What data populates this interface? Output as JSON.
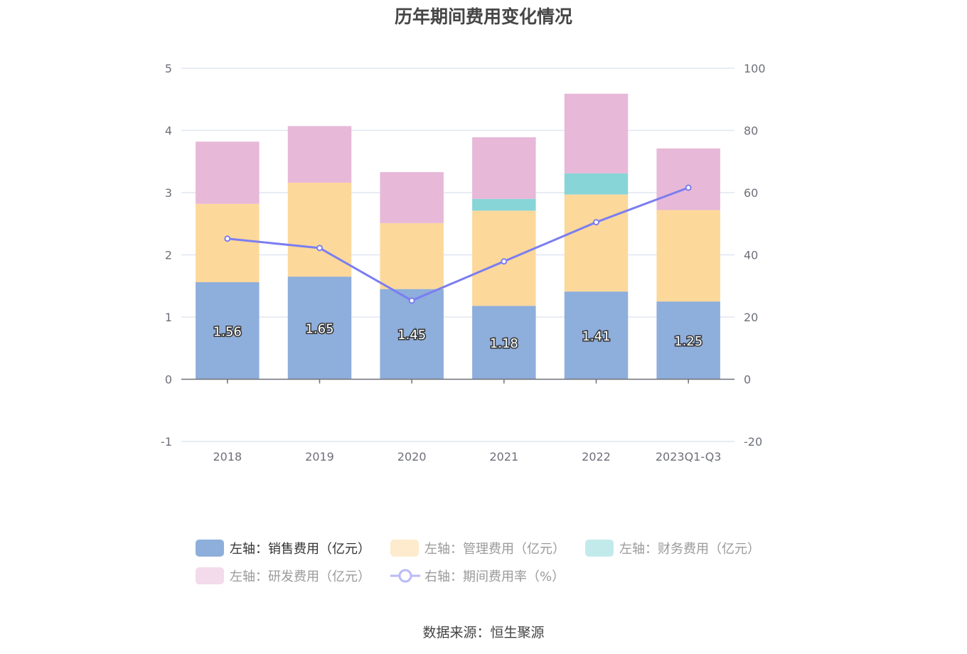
{
  "title": "历年期间费用变化情况",
  "source": "数据来源：恒生聚源",
  "chart_data": {
    "type": "bar",
    "stacked": true,
    "title": "历年期间费用变化情况",
    "categories": [
      "2018",
      "2019",
      "2020",
      "2021",
      "2022",
      "2023Q1-Q3"
    ],
    "y_left": {
      "ylim": [
        -1,
        5
      ],
      "ticks": [
        "-1",
        "0",
        "1",
        "2",
        "3",
        "4",
        "5"
      ],
      "tick_values": [
        -1,
        0,
        1,
        2,
        3,
        4,
        5
      ]
    },
    "y_right": {
      "ylim": [
        -20,
        100
      ],
      "ticks": [
        "-20",
        "0",
        "20",
        "40",
        "60",
        "80",
        "100"
      ],
      "tick_values": [
        -20,
        0,
        20,
        40,
        60,
        80,
        100
      ]
    },
    "grid": true,
    "legend_position": "bottom",
    "series": [
      {
        "name": "左轴：销售费用（亿元）",
        "type": "bar",
        "axis": "left",
        "color": "#8eaedb",
        "values": [
          1.56,
          1.65,
          1.45,
          1.18,
          1.41,
          1.25
        ],
        "labels": [
          "1.56",
          "1.65",
          "1.45",
          "1.18",
          "1.41",
          "1.25"
        ],
        "active": true
      },
      {
        "name": "左轴：管理费用（亿元）",
        "type": "bar",
        "axis": "left",
        "color": "#fdd89b",
        "values": [
          1.26,
          1.51,
          1.06,
          1.53,
          1.56,
          1.47
        ],
        "active": false
      },
      {
        "name": "左轴：财务费用（亿元）",
        "type": "bar",
        "axis": "left",
        "color": "#88d5d8",
        "values": [
          0,
          0,
          0,
          0.19,
          0.34,
          0
        ],
        "active": false
      },
      {
        "name": "左轴：研发费用（亿元）",
        "type": "bar",
        "axis": "left",
        "color": "#e7b8d8",
        "values": [
          1.0,
          0.91,
          0.82,
          0.99,
          1.28,
          0.99
        ],
        "active": false
      },
      {
        "name": "右轴：期间费用率（%）",
        "type": "line",
        "axis": "right",
        "color": "#7b7ef0",
        "values": [
          45.2,
          42.2,
          25.3,
          37.9,
          50.5,
          61.6
        ],
        "active": false
      }
    ]
  }
}
